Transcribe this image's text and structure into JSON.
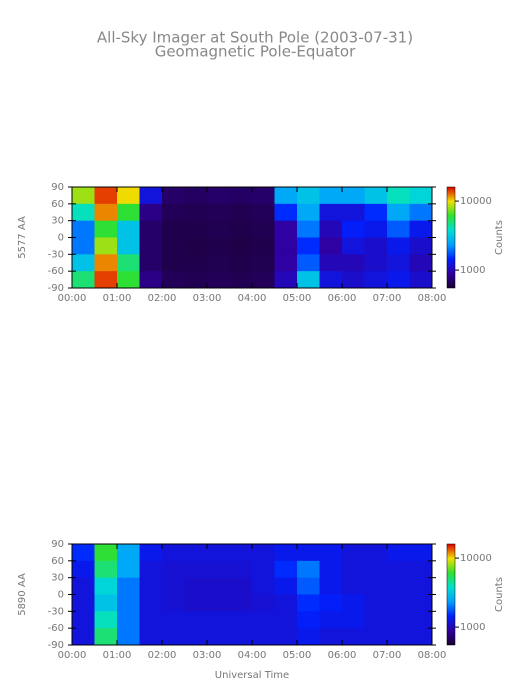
{
  "title": "All-Sky Imager at South Pole (2003-07-31)",
  "subtitle": "Geomagnetic Pole-Equator",
  "xlabel": "Universal Time",
  "chart_data": [
    {
      "type": "heatmap",
      "ylabel": "5577 AA",
      "zlabel": "Counts",
      "zscale": "log",
      "xlim": [
        0,
        8
      ],
      "ylim": [
        -90,
        90
      ],
      "zlim": [
        550,
        16000
      ],
      "xbins": [
        0,
        0.5,
        1,
        1.5,
        2,
        2.5,
        3,
        3.5,
        4,
        4.5,
        5,
        5.5,
        6,
        6.5,
        7,
        7.5,
        8
      ],
      "ybins": [
        90,
        60,
        30,
        0,
        -30,
        -60,
        -90
      ],
      "xticks": [
        {
          "value": 0,
          "label": "00:00"
        },
        {
          "value": 1,
          "label": "01:00"
        },
        {
          "value": 2,
          "label": "02:00"
        },
        {
          "value": 3,
          "label": "03:00"
        },
        {
          "value": 4,
          "label": "04:00"
        },
        {
          "value": 5,
          "label": "05:00"
        },
        {
          "value": 6,
          "label": "06:00"
        },
        {
          "value": 7,
          "label": "07:00"
        },
        {
          "value": 8,
          "label": "08:00"
        }
      ],
      "yticks": [
        90,
        60,
        30,
        0,
        -30,
        -60,
        -90
      ],
      "zticks": [
        10000,
        1000
      ],
      "colormap": [
        "#1a0030",
        "#3000a0",
        "#0020ff",
        "#00a0ff",
        "#00e0d0",
        "#30e030",
        "#f0e000",
        "#e00000"
      ],
      "z": [
        [
          8000,
          14000,
          10000,
          1200,
          700,
          680,
          700,
          690,
          700,
          2500,
          3000,
          2500,
          2500,
          3000,
          4000,
          3500
        ],
        [
          4000,
          12000,
          6000,
          800,
          650,
          640,
          650,
          640,
          660,
          1500,
          2500,
          1200,
          1200,
          1500,
          2500,
          2000
        ],
        [
          2000,
          6000,
          3000,
          700,
          620,
          620,
          630,
          620,
          630,
          900,
          2000,
          1000,
          1400,
          1300,
          1800,
          1300
        ],
        [
          2000,
          8000,
          3000,
          700,
          620,
          610,
          620,
          610,
          620,
          900,
          1500,
          900,
          1200,
          1100,
          1300,
          1100
        ],
        [
          3000,
          12000,
          5000,
          700,
          620,
          620,
          630,
          620,
          630,
          900,
          1800,
          1000,
          1000,
          1100,
          1200,
          1000
        ],
        [
          5000,
          14000,
          6000,
          800,
          650,
          640,
          650,
          640,
          660,
          1000,
          3000,
          1200,
          1100,
          1200,
          1300,
          1100
        ]
      ]
    },
    {
      "type": "heatmap",
      "ylabel": "5890 AA",
      "zlabel": "Counts",
      "zscale": "log",
      "xlim": [
        0,
        8
      ],
      "ylim": [
        -90,
        90
      ],
      "zlim": [
        550,
        16000
      ],
      "xbins": [
        0,
        0.5,
        1,
        1.5,
        2,
        2.5,
        3,
        3.5,
        4,
        4.5,
        5,
        5.5,
        6,
        6.5,
        7,
        7.5,
        8
      ],
      "ybins": [
        90,
        60,
        30,
        0,
        -30,
        -60,
        -90
      ],
      "xticks": [
        {
          "value": 0,
          "label": "00:00"
        },
        {
          "value": 1,
          "label": "01:00"
        },
        {
          "value": 2,
          "label": "02:00"
        },
        {
          "value": 3,
          "label": "03:00"
        },
        {
          "value": 4,
          "label": "04:00"
        },
        {
          "value": 5,
          "label": "05:00"
        },
        {
          "value": 6,
          "label": "06:00"
        },
        {
          "value": 7,
          "label": "07:00"
        },
        {
          "value": 8,
          "label": "08:00"
        }
      ],
      "yticks": [
        90,
        60,
        30,
        0,
        -30,
        -60,
        -90
      ],
      "zticks": [
        10000,
        1000
      ],
      "colormap": [
        "#1a0030",
        "#3000a0",
        "#0020ff",
        "#00a0ff",
        "#00e0d0",
        "#30e030",
        "#f0e000",
        "#e00000"
      ],
      "z": [
        [
          1500,
          6000,
          2500,
          1300,
          1200,
          1200,
          1200,
          1200,
          1200,
          1300,
          1300,
          1300,
          1200,
          1200,
          1300,
          1300
        ],
        [
          1300,
          5000,
          2500,
          1200,
          1150,
          1150,
          1150,
          1150,
          1200,
          1500,
          2000,
          1300,
          1200,
          1200,
          1200,
          1200
        ],
        [
          1200,
          3500,
          2000,
          1200,
          1150,
          1100,
          1100,
          1100,
          1200,
          1300,
          1800,
          1300,
          1200,
          1200,
          1200,
          1200
        ],
        [
          1200,
          3000,
          2000,
          1200,
          1150,
          1100,
          1100,
          1100,
          1150,
          1200,
          1500,
          1400,
          1300,
          1200,
          1200,
          1200
        ],
        [
          1200,
          4000,
          2000,
          1200,
          1200,
          1200,
          1200,
          1200,
          1200,
          1200,
          1400,
          1300,
          1300,
          1200,
          1200,
          1200
        ],
        [
          1200,
          5000,
          2000,
          1200,
          1200,
          1200,
          1200,
          1200,
          1200,
          1200,
          1300,
          1200,
          1200,
          1200,
          1200,
          1200
        ]
      ]
    }
  ]
}
